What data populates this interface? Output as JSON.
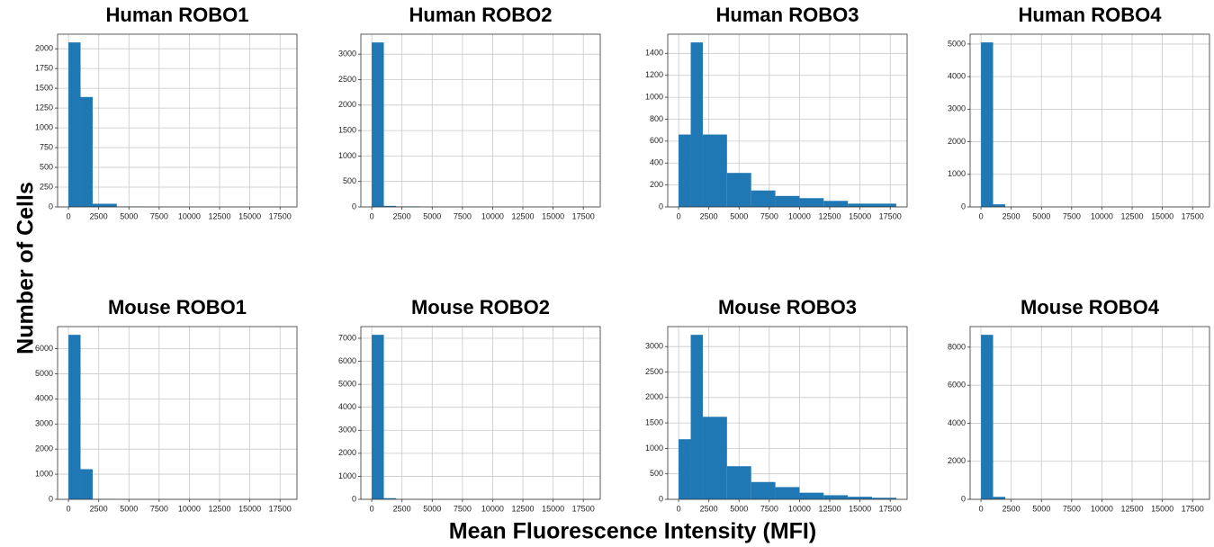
{
  "xlabel": "Mean Fluorescence Intensity (MFI)",
  "ylabel": "Number of Cells",
  "chart_data": [
    {
      "type": "histogram",
      "title": "Human ROBO1",
      "color": "#1f77b4",
      "grid": true,
      "bins": [
        0,
        1000,
        2000,
        4000,
        6000,
        8000,
        10000,
        12000,
        14000,
        16000,
        18000
      ],
      "values": [
        2080,
        1390,
        40,
        5,
        3,
        2,
        2,
        1,
        1,
        1
      ],
      "xlim": [
        -900,
        18900
      ],
      "xticks": [
        0,
        2500,
        5000,
        7500,
        10000,
        12500,
        15000,
        17500
      ],
      "ylim": [
        0,
        2184
      ],
      "yticks": [
        0,
        250,
        500,
        750,
        1000,
        1250,
        1500,
        1750,
        2000
      ]
    },
    {
      "type": "histogram",
      "title": "Human ROBO2",
      "color": "#1f77b4",
      "grid": true,
      "bins": [
        0,
        1000,
        2000,
        4000,
        6000,
        8000,
        10000,
        12000,
        14000,
        16000,
        18000
      ],
      "values": [
        3230,
        20,
        10,
        3,
        2,
        1,
        1,
        1,
        1,
        1
      ],
      "xlim": [
        -900,
        18900
      ],
      "xticks": [
        0,
        2500,
        5000,
        7500,
        10000,
        12500,
        15000,
        17500
      ],
      "ylim": [
        0,
        3392
      ],
      "yticks": [
        0,
        500,
        1000,
        1500,
        2000,
        2500,
        3000
      ]
    },
    {
      "type": "histogram",
      "title": "Human ROBO3",
      "color": "#1f77b4",
      "grid": true,
      "bins": [
        0,
        1000,
        2000,
        4000,
        6000,
        8000,
        10000,
        12000,
        14000,
        16000,
        18000
      ],
      "values": [
        660,
        1500,
        660,
        310,
        150,
        100,
        80,
        55,
        30,
        30
      ],
      "xlim": [
        -900,
        18900
      ],
      "xticks": [
        0,
        2500,
        5000,
        7500,
        10000,
        12500,
        15000,
        17500
      ],
      "ylim": [
        0,
        1575
      ],
      "yticks": [
        0,
        200,
        400,
        600,
        800,
        1000,
        1200,
        1400
      ]
    },
    {
      "type": "histogram",
      "title": "Human ROBO4",
      "color": "#1f77b4",
      "grid": true,
      "bins": [
        0,
        1000,
        2000,
        4000,
        6000,
        8000,
        10000,
        12000,
        14000,
        16000,
        18000
      ],
      "values": [
        5050,
        80,
        8,
        3,
        2,
        1,
        1,
        1,
        1,
        1
      ],
      "xlim": [
        -900,
        18900
      ],
      "xticks": [
        0,
        2500,
        5000,
        7500,
        10000,
        12500,
        15000,
        17500
      ],
      "ylim": [
        0,
        5302
      ],
      "yticks": [
        0,
        1000,
        2000,
        3000,
        4000,
        5000
      ]
    },
    {
      "type": "histogram",
      "title": "Mouse ROBO1",
      "color": "#1f77b4",
      "grid": true,
      "bins": [
        0,
        1000,
        2000,
        4000,
        6000,
        8000,
        10000,
        12000,
        14000,
        16000,
        18000
      ],
      "values": [
        6550,
        1200,
        15,
        5,
        3,
        2,
        1,
        1,
        1,
        1
      ],
      "xlim": [
        -900,
        18900
      ],
      "xticks": [
        0,
        2500,
        5000,
        7500,
        10000,
        12500,
        15000,
        17500
      ],
      "ylim": [
        0,
        6878
      ],
      "yticks": [
        0,
        1000,
        2000,
        3000,
        4000,
        5000,
        6000
      ]
    },
    {
      "type": "histogram",
      "title": "Mouse ROBO2",
      "color": "#1f77b4",
      "grid": true,
      "bins": [
        0,
        1000,
        2000,
        4000,
        6000,
        8000,
        10000,
        12000,
        14000,
        16000,
        18000
      ],
      "values": [
        7150,
        50,
        8,
        3,
        2,
        1,
        1,
        1,
        1,
        1
      ],
      "xlim": [
        -900,
        18900
      ],
      "xticks": [
        0,
        2500,
        5000,
        7500,
        10000,
        12500,
        15000,
        17500
      ],
      "ylim": [
        0,
        7508
      ],
      "yticks": [
        0,
        1000,
        2000,
        3000,
        4000,
        5000,
        6000,
        7000
      ]
    },
    {
      "type": "histogram",
      "title": "Mouse ROBO3",
      "color": "#1f77b4",
      "grid": true,
      "bins": [
        0,
        1000,
        2000,
        4000,
        6000,
        8000,
        10000,
        12000,
        14000,
        16000,
        18000
      ],
      "values": [
        1180,
        3230,
        1620,
        650,
        340,
        240,
        130,
        80,
        50,
        30
      ],
      "xlim": [
        -900,
        18900
      ],
      "xticks": [
        0,
        2500,
        5000,
        7500,
        10000,
        12500,
        15000,
        17500
      ],
      "ylim": [
        0,
        3392
      ],
      "yticks": [
        0,
        500,
        1000,
        1500,
        2000,
        2500,
        3000
      ]
    },
    {
      "type": "histogram",
      "title": "Mouse ROBO4",
      "color": "#1f77b4",
      "grid": true,
      "bins": [
        0,
        1000,
        2000,
        4000,
        6000,
        8000,
        10000,
        12000,
        14000,
        16000,
        18000
      ],
      "values": [
        8650,
        130,
        10,
        4,
        2,
        1,
        1,
        1,
        1,
        1
      ],
      "xlim": [
        -900,
        18900
      ],
      "xticks": [
        0,
        2500,
        5000,
        7500,
        10000,
        12500,
        15000,
        17500
      ],
      "ylim": [
        0,
        9083
      ],
      "yticks": [
        0,
        2000,
        4000,
        6000,
        8000
      ]
    }
  ]
}
